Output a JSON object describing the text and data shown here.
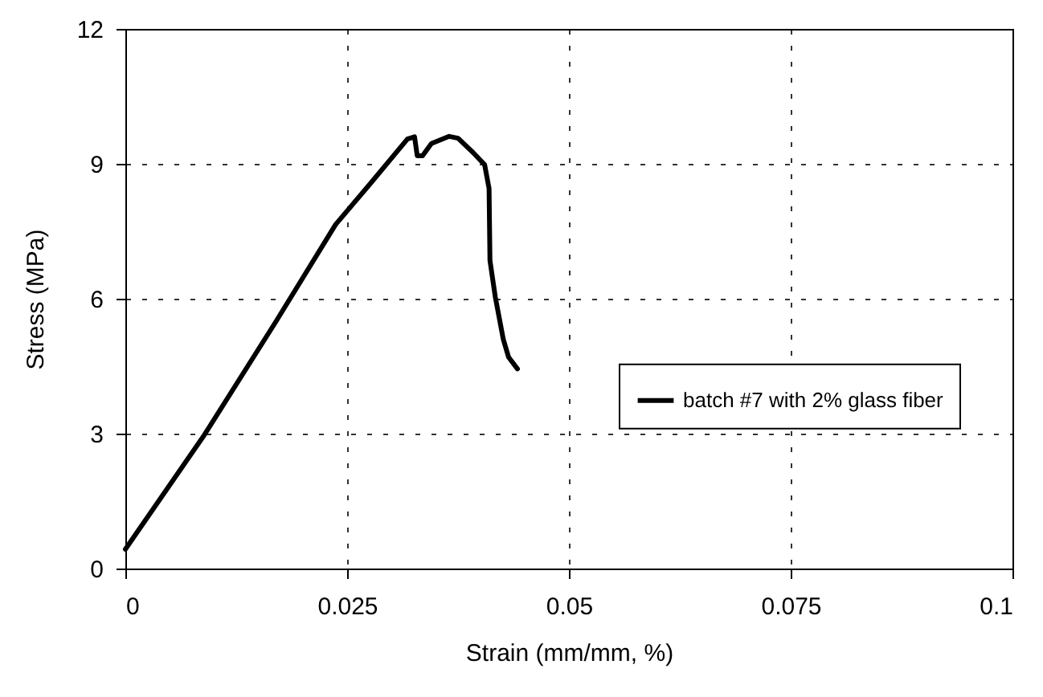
{
  "chart_data": {
    "type": "line",
    "xlabel": "Strain (mm/mm, %)",
    "ylabel": "Stress (MPa)",
    "xlim": [
      0,
      0.1
    ],
    "xticks": [
      0,
      0.025,
      0.05,
      0.075,
      0.1
    ],
    "ylim": [
      0,
      12
    ],
    "yticks": [
      0,
      3,
      6,
      9,
      12
    ],
    "grid": true,
    "legend": "right",
    "line_style": "solid",
    "marker": "none",
    "series": [
      {
        "name": "batch #7 with 2% glass fiber",
        "color": "#000000",
        "x": [
          0,
          0.0089,
          0.017,
          0.0237,
          0.0277,
          0.0318,
          0.0326,
          0.0329,
          0.0335,
          0.0345,
          0.0365,
          0.0375,
          0.0392,
          0.0405,
          0.041,
          0.0411,
          0.0417,
          0.0426,
          0.0432,
          0.0442
        ],
        "values": [
          0.43,
          2.97,
          5.5,
          7.65,
          8.58,
          9.55,
          9.6,
          9.18,
          9.18,
          9.45,
          9.61,
          9.57,
          9.25,
          8.98,
          8.45,
          6.85,
          6.04,
          5.1,
          4.7,
          4.44
        ]
      }
    ]
  }
}
